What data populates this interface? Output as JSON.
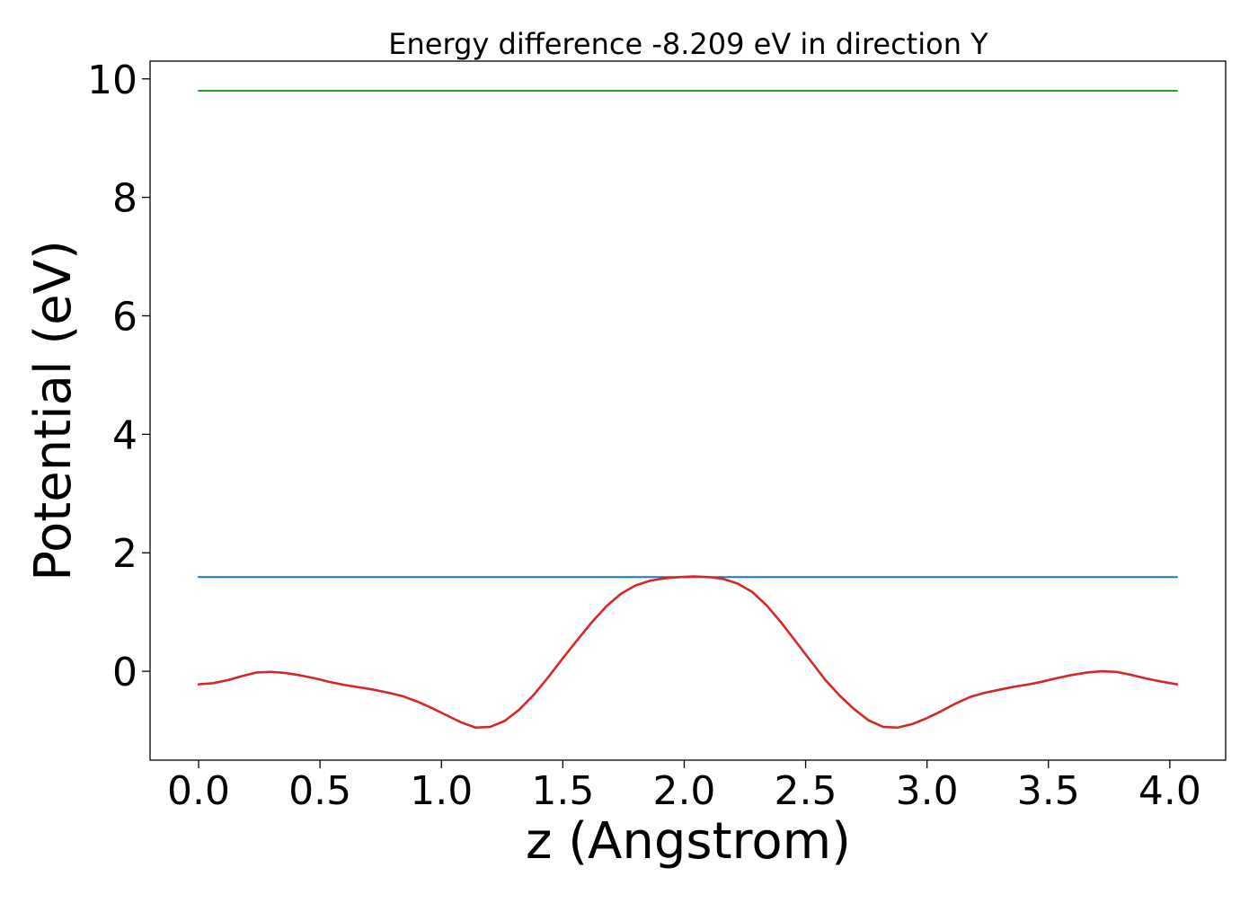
{
  "chart_data": {
    "type": "line",
    "title": "Energy difference -8.209 eV in direction Y",
    "xlabel": "z (Angstrom)",
    "ylabel": "Potential (eV)",
    "xlim": [
      -0.2,
      4.23
    ],
    "ylim": [
      -1.5,
      10.3
    ],
    "xticks": [
      0.0,
      0.5,
      1.0,
      1.5,
      2.0,
      2.5,
      3.0,
      3.5,
      4.0
    ],
    "xtick_labels": [
      "0.0",
      "0.5",
      "1.0",
      "1.5",
      "2.0",
      "2.5",
      "3.0",
      "3.5",
      "4.0"
    ],
    "yticks": [
      0,
      2,
      4,
      6,
      8,
      10
    ],
    "ytick_labels": [
      "0",
      "2",
      "4",
      "6",
      "8",
      "10"
    ],
    "grid": false,
    "series": [
      {
        "color": "#2ca02c",
        "x": [
          0.0,
          4.03
        ],
        "y": [
          9.8,
          9.8
        ]
      },
      {
        "color": "#1f77b4",
        "x": [
          0.0,
          4.03
        ],
        "y": [
          1.59,
          1.59
        ]
      },
      {
        "color": "#d62728",
        "x": [
          0.0,
          0.06,
          0.12,
          0.18,
          0.24,
          0.3,
          0.36,
          0.42,
          0.48,
          0.54,
          0.6,
          0.66,
          0.72,
          0.78,
          0.84,
          0.9,
          0.96,
          1.02,
          1.08,
          1.14,
          1.2,
          1.26,
          1.32,
          1.38,
          1.44,
          1.5,
          1.56,
          1.62,
          1.68,
          1.74,
          1.8,
          1.86,
          1.92,
          1.98,
          2.04,
          2.1,
          2.16,
          2.22,
          2.28,
          2.34,
          2.4,
          2.46,
          2.52,
          2.58,
          2.64,
          2.7,
          2.76,
          2.82,
          2.88,
          2.94,
          3.0,
          3.06,
          3.12,
          3.18,
          3.24,
          3.3,
          3.36,
          3.42,
          3.48,
          3.54,
          3.6,
          3.66,
          3.72,
          3.78,
          3.84,
          3.9,
          3.96,
          4.03
        ],
        "y": [
          -0.22,
          -0.2,
          -0.15,
          -0.08,
          -0.02,
          -0.01,
          -0.03,
          -0.07,
          -0.12,
          -0.18,
          -0.23,
          -0.27,
          -0.31,
          -0.36,
          -0.42,
          -0.51,
          -0.62,
          -0.74,
          -0.86,
          -0.95,
          -0.94,
          -0.84,
          -0.65,
          -0.4,
          -0.1,
          0.22,
          0.53,
          0.83,
          1.1,
          1.31,
          1.45,
          1.53,
          1.57,
          1.59,
          1.6,
          1.59,
          1.56,
          1.48,
          1.34,
          1.11,
          0.82,
          0.5,
          0.18,
          -0.14,
          -0.41,
          -0.64,
          -0.83,
          -0.94,
          -0.95,
          -0.89,
          -0.79,
          -0.67,
          -0.54,
          -0.43,
          -0.36,
          -0.31,
          -0.26,
          -0.22,
          -0.17,
          -0.11,
          -0.06,
          -0.02,
          0.0,
          -0.01,
          -0.06,
          -0.12,
          -0.17,
          -0.22
        ]
      }
    ]
  }
}
